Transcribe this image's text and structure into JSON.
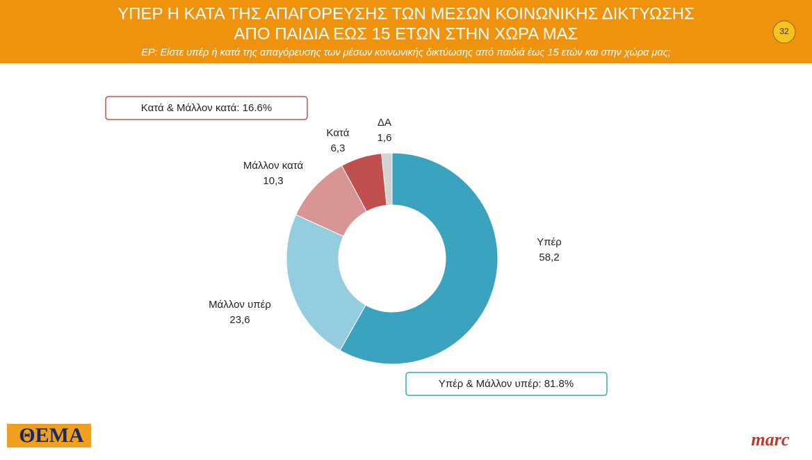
{
  "chart_data": {
    "type": "donut",
    "title": [
      "ΥΠΕΡ Η ΚΑΤΑ ΤΗΣ ΑΠΑΓΟΡΕΥΣΗΣ ΤΩΝ ΜΕΣΩΝ ΚΟΙΝΩΝΙΚΗΣ ΔΙΚΤΥΩΣΗΣ",
      "ΑΠΟ ΠΑΙΔΙΑ ΕΩΣ 15 ΕΤΩΝ ΣΤΗΝ ΧΩΡΑ ΜΑΣ"
    ],
    "subtitle": "ΕΡ: Είστε υπέρ ή κατά της απαγόρευσης των μέσων κοινωνικής δικτύωσης από παιδιά έως 15 ετών και στην χώρα μας;",
    "page_number": "32",
    "categories": [
      "Υπέρ",
      "Μάλλον υπέρ",
      "Μάλλον κατά",
      "Κατά",
      "ΔΑ"
    ],
    "values": [
      58.2,
      23.6,
      10.3,
      6.3,
      1.6
    ],
    "value_labels": [
      "58,2",
      "23,6",
      "10,3",
      "6,3",
      "1,6"
    ],
    "colors": [
      "#3ba3bf",
      "#95cde0",
      "#d99594",
      "#c0504d",
      "#d3d3d3"
    ],
    "annotations": [
      "Κατά & Μάλλον κατά: 16.6%",
      "Υπέρ & Μάλλον υπέρ: 81.8%"
    ]
  },
  "logos": {
    "left": "ΘΕΜΑ",
    "right": "marc"
  }
}
